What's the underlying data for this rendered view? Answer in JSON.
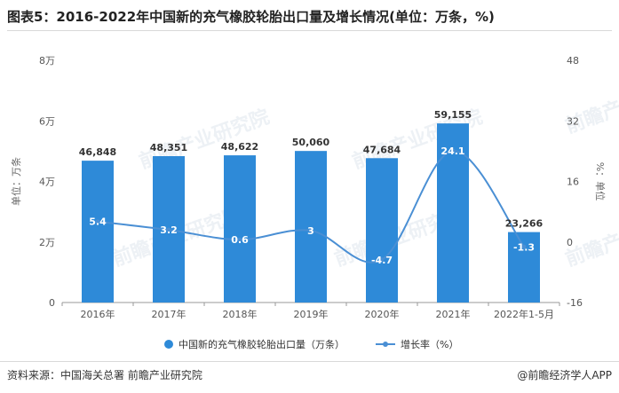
{
  "title": "图表5：2016-2022年中国新的充气橡胶轮胎出口量及增长情况(单位：万条，%)",
  "source": "资料来源：中国海关总署 前瞻产业研究院",
  "credit": "@前瞻经济学人APP",
  "watermark": "前瞻产业研究院",
  "colors": {
    "bar": "#2e8ad8",
    "line": "#4a8fd4",
    "grid": "#e3e3e3",
    "axis": "#999999"
  },
  "chart_data": {
    "type": "bar",
    "categories": [
      "2016年",
      "2017年",
      "2018年",
      "2019年",
      "2020年",
      "2021年",
      "2022年1-5月"
    ],
    "series": [
      {
        "name": "中国新的充气橡胶轮胎出口量（万条）",
        "type": "bar",
        "axis": "left",
        "values": [
          46848,
          48351,
          48622,
          50060,
          47684,
          59155,
          23266
        ],
        "labels": [
          "46,848",
          "48,351",
          "48,622",
          "50,060",
          "47,684",
          "59,155",
          "23,266"
        ]
      },
      {
        "name": "增长率（%）",
        "type": "line",
        "axis": "right",
        "values": [
          5.4,
          3.2,
          0.6,
          3,
          -4.7,
          24.1,
          -1.3
        ],
        "labels": [
          "5.4",
          "3.2",
          "0.6",
          "3",
          "-4.7",
          "24.1",
          "-1.3"
        ]
      }
    ],
    "ylabel_left": "单位：万条",
    "ylabel_right": "%：单位",
    "ylim_left": [
      0,
      80000
    ],
    "ylim_right": [
      -16,
      48
    ],
    "yticks_left": [
      "0",
      "2万",
      "4万",
      "6万",
      "8万"
    ],
    "yticks_right": [
      "-16",
      "0",
      "16",
      "32",
      "48"
    ],
    "grid": false,
    "legend": "bottom"
  }
}
